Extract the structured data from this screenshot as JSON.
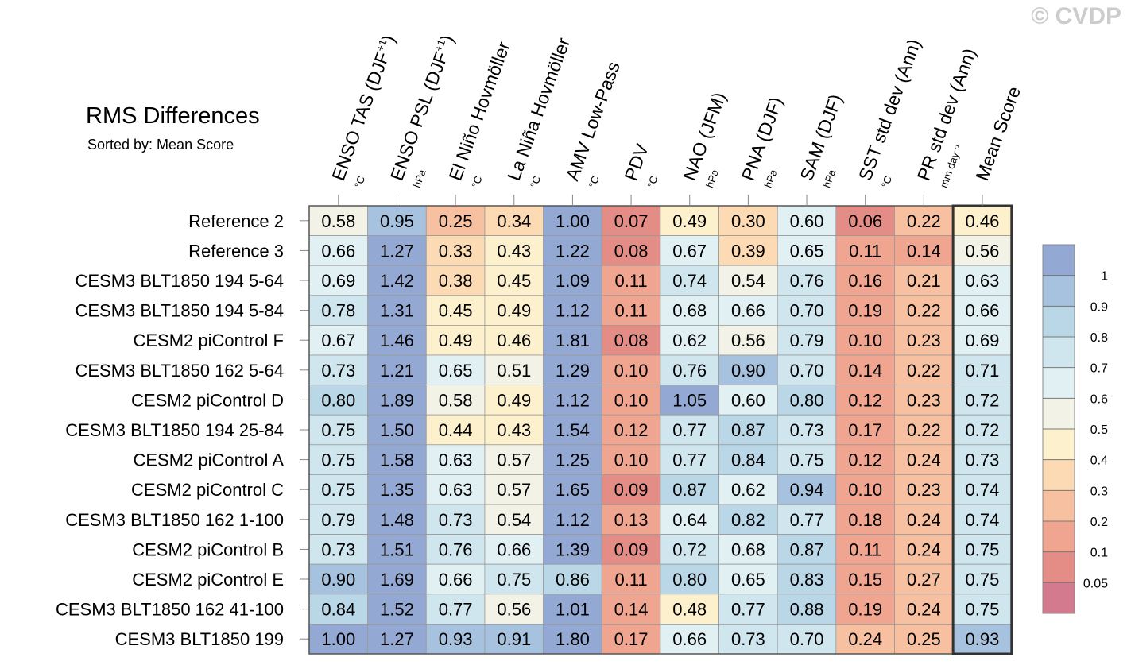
{
  "watermark": "© CVDP",
  "chart_data": {
    "type": "heatmap",
    "title": "RMS Differences",
    "subtitle": "Sorted by: Mean Score",
    "columns": [
      {
        "label": "ENSO TAS (DJF",
        "sup": "+1",
        "tail": ")",
        "unit": "°C"
      },
      {
        "label": "ENSO PSL (DJF",
        "sup": "+1",
        "tail": ")",
        "unit": "hPa"
      },
      {
        "label": "El Niño Hovmöller",
        "sup": "",
        "tail": "",
        "unit": "°C"
      },
      {
        "label": "La Niña Hovmöller",
        "sup": "",
        "tail": "",
        "unit": "°C"
      },
      {
        "label": "AMV Low-Pass",
        "sup": "",
        "tail": "",
        "unit": "°C"
      },
      {
        "label": "PDV",
        "sup": "",
        "tail": "",
        "unit": "°C"
      },
      {
        "label": "NAO (JFM)",
        "sup": "",
        "tail": "",
        "unit": "hPa"
      },
      {
        "label": "PNA (DJF)",
        "sup": "",
        "tail": "",
        "unit": "hPa"
      },
      {
        "label": "SAM (DJF)",
        "sup": "",
        "tail": "",
        "unit": "hPa"
      },
      {
        "label": "SST std dev (Ann)",
        "sup": "",
        "tail": "",
        "unit": "°C"
      },
      {
        "label": "PR std dev (Ann)",
        "sup": "",
        "tail": "",
        "unit": "mm day⁻¹"
      },
      {
        "label": "Mean Score",
        "sup": "",
        "tail": "",
        "unit": ""
      }
    ],
    "rows": [
      {
        "name": "Reference 2",
        "values": [
          0.58,
          0.95,
          0.25,
          0.34,
          1.0,
          0.07,
          0.49,
          0.3,
          0.6,
          0.06,
          0.22,
          0.46
        ]
      },
      {
        "name": "Reference 3",
        "values": [
          0.66,
          1.27,
          0.33,
          0.43,
          1.22,
          0.08,
          0.67,
          0.39,
          0.65,
          0.11,
          0.14,
          0.56
        ]
      },
      {
        "name": "CESM3 BLT1850 194 5-64",
        "values": [
          0.69,
          1.42,
          0.38,
          0.45,
          1.09,
          0.11,
          0.74,
          0.54,
          0.76,
          0.16,
          0.21,
          0.63
        ]
      },
      {
        "name": "CESM3 BLT1850 194 5-84",
        "values": [
          0.78,
          1.31,
          0.45,
          0.49,
          1.12,
          0.11,
          0.68,
          0.66,
          0.7,
          0.19,
          0.22,
          0.66
        ]
      },
      {
        "name": "CESM2 piControl F",
        "values": [
          0.67,
          1.46,
          0.49,
          0.46,
          1.81,
          0.08,
          0.62,
          0.56,
          0.79,
          0.1,
          0.23,
          0.69
        ]
      },
      {
        "name": "CESM3 BLT1850 162 5-64",
        "values": [
          0.73,
          1.21,
          0.65,
          0.51,
          1.29,
          0.1,
          0.76,
          0.9,
          0.7,
          0.14,
          0.22,
          0.71
        ]
      },
      {
        "name": "CESM2 piControl D",
        "values": [
          0.8,
          1.89,
          0.58,
          0.49,
          1.12,
          0.1,
          1.05,
          0.6,
          0.8,
          0.12,
          0.23,
          0.72
        ]
      },
      {
        "name": "CESM3 BLT1850 194 25-84",
        "values": [
          0.75,
          1.5,
          0.44,
          0.43,
          1.54,
          0.12,
          0.77,
          0.87,
          0.73,
          0.17,
          0.22,
          0.72
        ]
      },
      {
        "name": "CESM2 piControl A",
        "values": [
          0.75,
          1.58,
          0.63,
          0.57,
          1.25,
          0.1,
          0.77,
          0.84,
          0.75,
          0.12,
          0.24,
          0.73
        ]
      },
      {
        "name": "CESM2 piControl C",
        "values": [
          0.75,
          1.35,
          0.63,
          0.57,
          1.65,
          0.09,
          0.87,
          0.62,
          0.94,
          0.1,
          0.23,
          0.74
        ]
      },
      {
        "name": "CESM3 BLT1850 162 1-100",
        "values": [
          0.79,
          1.48,
          0.73,
          0.54,
          1.12,
          0.13,
          0.64,
          0.82,
          0.77,
          0.18,
          0.24,
          0.74
        ]
      },
      {
        "name": "CESM2 piControl B",
        "values": [
          0.73,
          1.51,
          0.76,
          0.66,
          1.39,
          0.09,
          0.72,
          0.68,
          0.87,
          0.11,
          0.24,
          0.75
        ]
      },
      {
        "name": "CESM2 piControl E",
        "values": [
          0.9,
          1.69,
          0.66,
          0.75,
          0.86,
          0.11,
          0.8,
          0.65,
          0.83,
          0.15,
          0.27,
          0.75
        ]
      },
      {
        "name": "CESM3 BLT1850 162 41-100",
        "values": [
          0.84,
          1.52,
          0.77,
          0.56,
          1.01,
          0.14,
          0.48,
          0.77,
          0.88,
          0.19,
          0.24,
          0.75
        ]
      },
      {
        "name": "CESM3 BLT1850 199",
        "values": [
          1.0,
          1.27,
          0.93,
          0.91,
          1.8,
          0.17,
          0.66,
          0.73,
          0.7,
          0.24,
          0.25,
          0.93
        ]
      }
    ],
    "colorbar": {
      "boundaries": [
        0.05,
        0.1,
        0.2,
        0.3,
        0.4,
        0.5,
        0.6,
        0.7,
        0.8,
        0.9,
        1
      ],
      "tick_labels": [
        "0.05",
        "0.1",
        "0.2",
        "0.3",
        "0.4",
        "0.5",
        "0.6",
        "0.7",
        "0.8",
        "0.9",
        "1"
      ],
      "colors": [
        "#d47a8e",
        "#e48c86",
        "#f0a590",
        "#f6c0a1",
        "#fbdab4",
        "#fdf0cd",
        "#f3f2e6",
        "#e1f0f3",
        "#cfe6ef",
        "#bad7e7",
        "#a6c2de",
        "#93a8d2"
      ]
    }
  }
}
